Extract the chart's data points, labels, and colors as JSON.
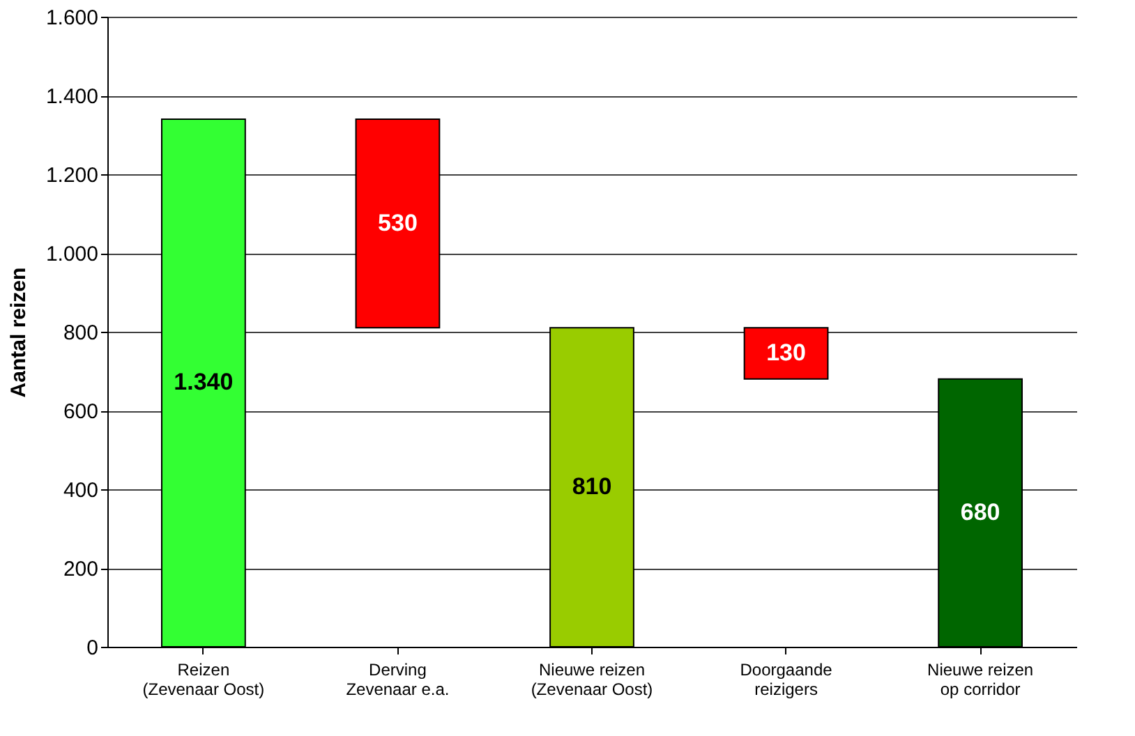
{
  "chart_data": {
    "type": "bar",
    "ylabel": "Aantal reizen",
    "categories": [
      "Reizen\n(Zevenaar Oost)",
      "Derving\nZevenaar e.a.",
      "Nieuwe reizen\n(Zevenaar Oost)",
      "Doorgaande\nreizigers",
      "Nieuwe reizen\nop corridor"
    ],
    "values": [
      1340,
      530,
      810,
      130,
      680
    ],
    "base": [
      0,
      810,
      0,
      680,
      0
    ],
    "colors": [
      "#33ff33",
      "#ff0000",
      "#99cc00",
      "#ff0000",
      "#006600"
    ],
    "value_labels": [
      "1.340",
      "530",
      "810",
      "130",
      "680"
    ],
    "ylim": [
      0,
      1600
    ],
    "yticks": [
      0,
      200,
      400,
      600,
      800,
      {
        "value": 1000,
        "label": "1.000"
      },
      {
        "value": 1200,
        "label": "1.200"
      },
      {
        "value": 1400,
        "label": "1.400"
      },
      {
        "value": 1600,
        "label": "1.600"
      }
    ],
    "grid": "y"
  }
}
